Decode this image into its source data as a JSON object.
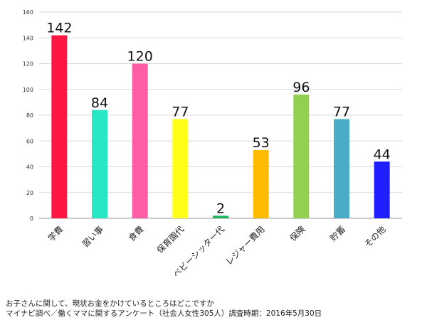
{
  "chart_data": {
    "type": "bar",
    "title": "",
    "xlabel": "",
    "ylabel": "",
    "ylim": [
      0,
      160
    ],
    "yticks": [
      0,
      20,
      40,
      60,
      80,
      100,
      120,
      140,
      160
    ],
    "grid": true,
    "categories": [
      "学費",
      "習い事",
      "食費",
      "保育園代",
      "ベビーシッター代",
      "レジャー費用",
      "保険",
      "貯蓄",
      "その他"
    ],
    "values": [
      142,
      84,
      120,
      77,
      2,
      53,
      96,
      77,
      44
    ],
    "colors": [
      "#ff1744",
      "#26e8c4",
      "#ff5ca6",
      "#ffff1a",
      "#1fb55c",
      "#ffbb00",
      "#92d050",
      "#4bacc6",
      "#1f1fff"
    ]
  },
  "caption": {
    "line1": "お子さんに関して、現状お金をかけているところはどこですか",
    "line2": "マイナビ調べ／働くママに関するアンケート（社会人女性305人）調査時期：2016年5月30日"
  }
}
